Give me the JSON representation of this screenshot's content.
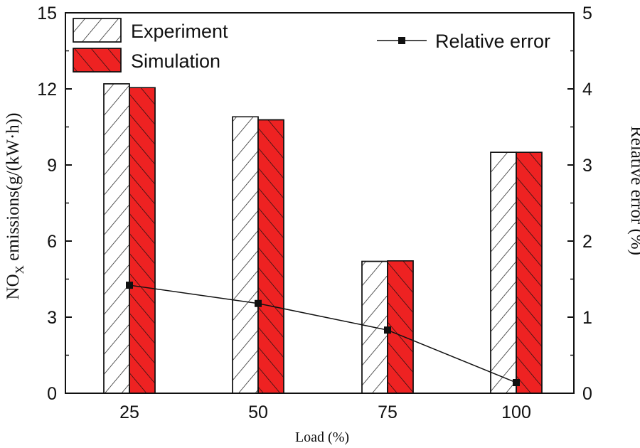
{
  "chart_data": {
    "type": "bar",
    "categories": [
      "25",
      "50",
      "75",
      "100"
    ],
    "series": [
      {
        "name": "Experiment",
        "values": [
          12.2,
          10.9,
          5.2,
          9.5
        ],
        "color": "#ffffff",
        "hatch": "forward"
      },
      {
        "name": "Simulation",
        "values": [
          12.05,
          10.78,
          5.22,
          9.5
        ],
        "color": "#ee2222",
        "hatch": "backward"
      }
    ],
    "line_series": {
      "name": "Relative error",
      "values": [
        1.42,
        1.18,
        0.83,
        0.14
      ],
      "color": "#111111"
    },
    "xlabel": "Load (%)",
    "ylabel_main": "NO",
    "ylabel_sub": "X",
    "ylabel_rest": " emissions(g/(kW·h))",
    "y2label": "Relative error (%)",
    "ylim": [
      0,
      15
    ],
    "y2lim": [
      0,
      5
    ],
    "yticks": [
      "0",
      "3",
      "6",
      "9",
      "12",
      "15"
    ],
    "y2ticks": [
      "0",
      "1",
      "2",
      "3",
      "4",
      "5"
    ],
    "legend_position": "top",
    "grid": false
  }
}
